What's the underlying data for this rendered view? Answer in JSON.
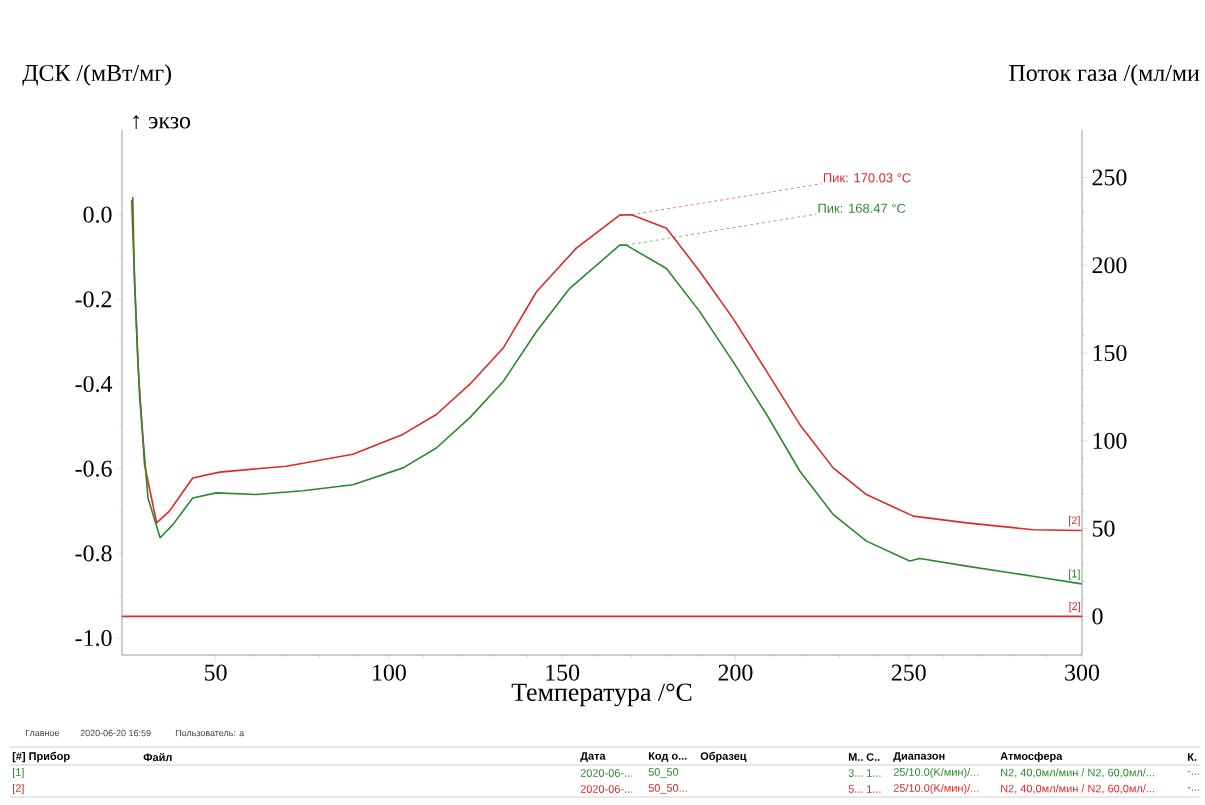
{
  "chart_data": {
    "type": "line",
    "xlabel": "Температура /°C",
    "ylabel": "ДСК /(мВт/мг)",
    "y2label": "Поток газа /(мл/ми",
    "xlim": [
      23,
      300
    ],
    "xticks": [
      50,
      100,
      150,
      200,
      250,
      300
    ],
    "ylim": [
      -1.04,
      0.2
    ],
    "yticks": [
      {
        "value": -1.0,
        "label": "-1.0"
      },
      {
        "value": -0.8,
        "label": "-0.8"
      },
      {
        "value": -0.6,
        "label": "-0.6"
      },
      {
        "value": -0.4,
        "label": "-0.4"
      },
      {
        "value": -0.2,
        "label": "-0.2"
      },
      {
        "value": 0.0,
        "label": "0.0"
      }
    ],
    "y2lim": [
      -22,
      277
    ],
    "y2ticks": [
      0,
      50,
      100,
      150,
      200,
      250
    ],
    "marker": "none",
    "line_style": "solid",
    "series": [
      {
        "name": "[1]",
        "color": "#2a8a2a",
        "x": [
          26.1,
          26.6,
          28.1,
          30.5,
          34.0,
          37.7,
          43.4,
          50.2,
          61.7,
          75.2,
          89.6,
          104.1,
          113.7,
          123.3,
          133,
          142.6,
          152.2,
          166.6,
          168.5,
          180.1,
          189.7,
          199.3,
          209,
          218.6,
          228.2,
          237.8,
          250.3,
          253.2,
          266.7,
          285.9,
          299.9
        ],
        "values": [
          0.042,
          -0.158,
          -0.433,
          -0.669,
          -0.763,
          -0.732,
          -0.669,
          -0.657,
          -0.661,
          -0.652,
          -0.638,
          -0.598,
          -0.551,
          -0.48,
          -0.394,
          -0.276,
          -0.174,
          -0.072,
          -0.072,
          -0.127,
          -0.229,
          -0.347,
          -0.472,
          -0.606,
          -0.708,
          -0.771,
          -0.818,
          -0.812,
          -0.83,
          -0.854,
          -0.872
        ]
      },
      {
        "name": "[2]",
        "color": "#e02828",
        "x": [
          25.8,
          26.3,
          27.6,
          29.5,
          33.0,
          36.7,
          43.4,
          51.2,
          70.4,
          89.6,
          104,
          113.7,
          123.3,
          133,
          142.6,
          154.1,
          166.6,
          170.0,
          180.1,
          189.7,
          199.3,
          209,
          218.6,
          228.2,
          237.8,
          251.3,
          266.7,
          285.9,
          299.9
        ],
        "values": [
          0.035,
          -0.08,
          -0.354,
          -0.59,
          -0.728,
          -0.7,
          -0.622,
          -0.608,
          -0.594,
          -0.566,
          -0.519,
          -0.472,
          -0.401,
          -0.315,
          -0.182,
          -0.079,
          -0.001,
          0.0,
          -0.032,
          -0.134,
          -0.245,
          -0.37,
          -0.496,
          -0.598,
          -0.661,
          -0.712,
          -0.728,
          -0.744,
          -0.746
        ]
      },
      {
        "name": "[2]",
        "color": "#e02828",
        "axis": "y2",
        "x": [
          23,
          300
        ],
        "values": [
          0,
          0
        ]
      }
    ],
    "annotations": [
      {
        "text": "Пик: 168.47 °C",
        "x": 168.47,
        "y": -0.072
      },
      {
        "text": "Пик: 170.03 °C",
        "x": 170.03,
        "y": 0.0
      },
      "↑ экзо",
      "Главное",
      "2020-06-20 16:59",
      "Пользователь: a",
      "[#] Прибор",
      "Файл",
      "Дата",
      "Код о...",
      "Образец",
      "М..",
      "С..",
      "Диапазон",
      "Атмосфера",
      "К.",
      "[1]",
      "2020-06-...",
      "50_50",
      "3...",
      "1...",
      "25/10.0(K/мин)/...",
      "N2, 40,0мл/мин / N2, 60,0мл/...",
      "-...",
      "[2]",
      "2020-06-...",
      "50_50...",
      "5...",
      "1...",
      "25/10.0(K/мин)/...",
      "N2, 40,0мл/мин / N2, 60,0мл/...",
      "-..."
    ]
  }
}
